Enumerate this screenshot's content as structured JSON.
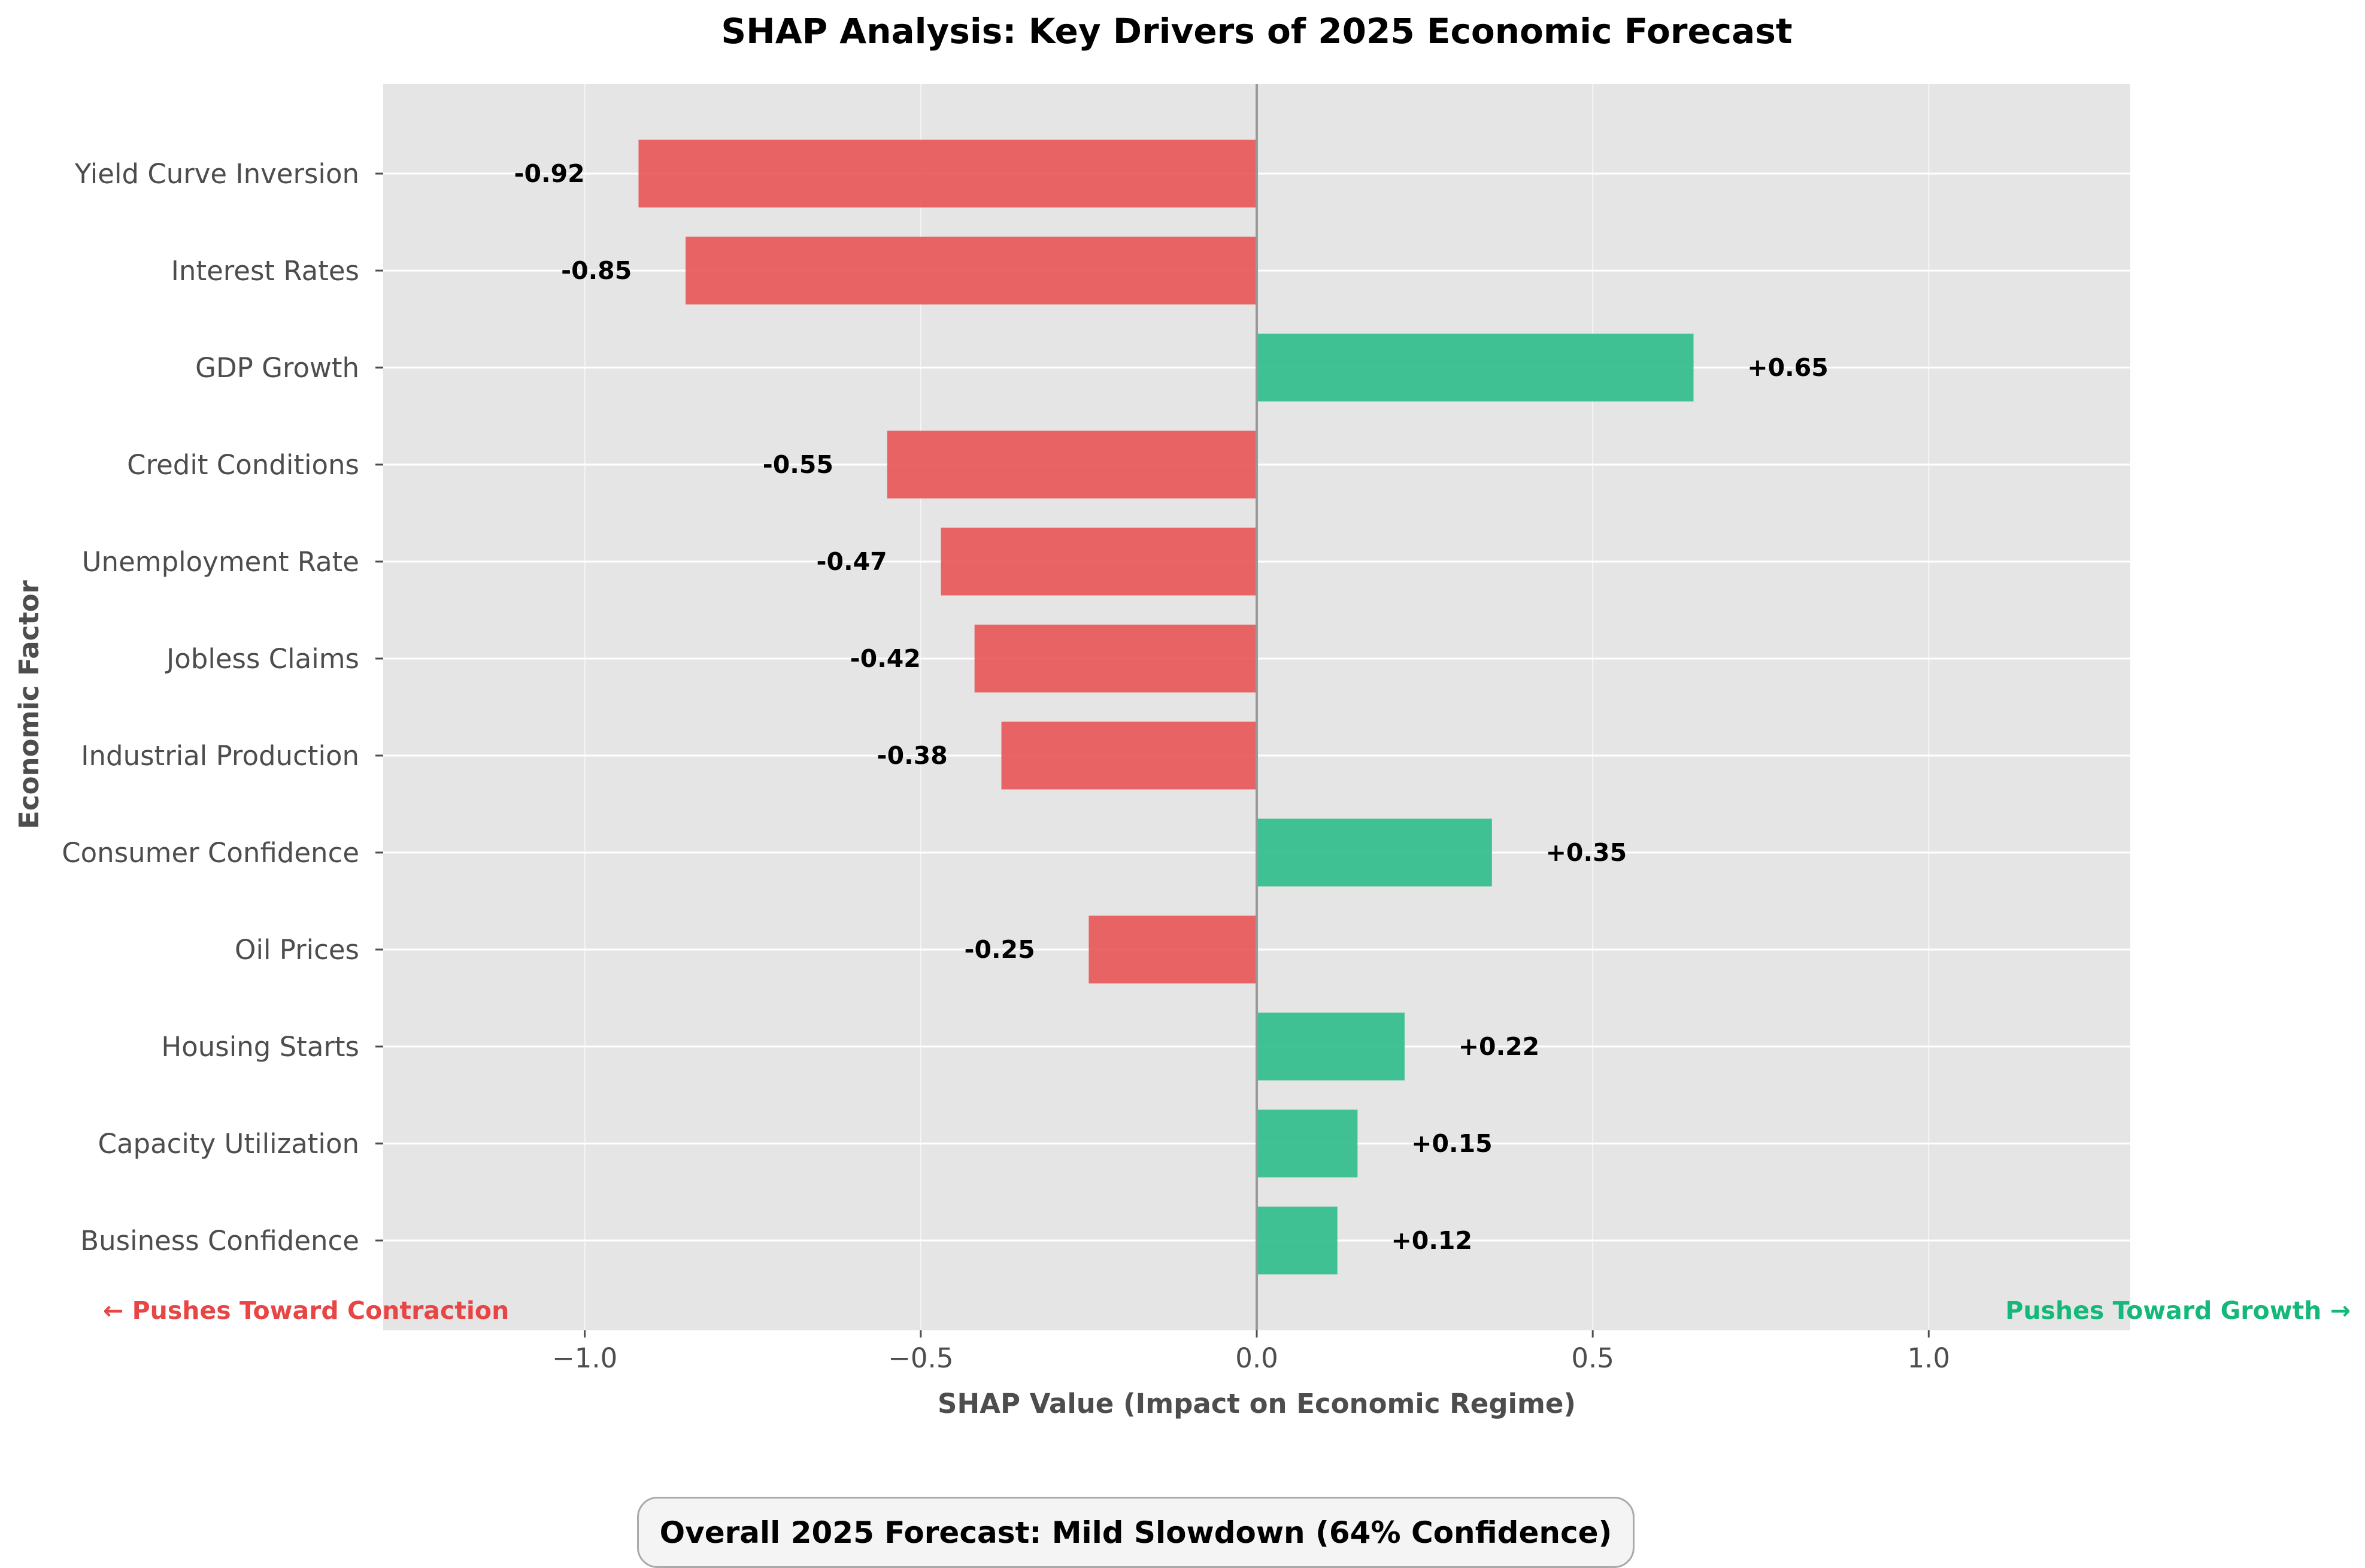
{
  "chart_data": {
    "type": "bar",
    "orientation": "horizontal",
    "title": "SHAP Analysis: Key Drivers of 2025 Economic Forecast",
    "xlabel": "SHAP Value (Impact on Economic Regime)",
    "ylabel": "Economic Factor",
    "xlim": [
      -1.3,
      1.3
    ],
    "xticks": [
      -1.0,
      -0.5,
      0.0,
      0.5,
      1.0
    ],
    "xtick_labels": [
      "−1.0",
      "−0.5",
      "0.0",
      "0.5",
      "1.0"
    ],
    "grid": true,
    "categories": [
      "Yield Curve Inversion",
      "Interest Rates",
      "GDP Growth",
      "Credit Conditions",
      "Unemployment Rate",
      "Jobless Claims",
      "Industrial Production",
      "Consumer Confidence",
      "Oil Prices",
      "Housing Starts",
      "Capacity Utilization",
      "Business Confidence"
    ],
    "values": [
      -0.92,
      -0.85,
      0.65,
      -0.55,
      -0.47,
      -0.42,
      -0.38,
      0.35,
      -0.25,
      0.22,
      0.15,
      0.12
    ],
    "value_labels": [
      "-0.92",
      "-0.85",
      "+0.65",
      "-0.55",
      "-0.47",
      "-0.42",
      "-0.38",
      "+0.35",
      "-0.25",
      "+0.22",
      "+0.15",
      "+0.12"
    ],
    "colors": {
      "negative": "#e85555",
      "positive": "#2ebd8a",
      "plot_background": "#e5e5e5",
      "grid": "#ffffff",
      "zero_line": "#999999"
    },
    "annotations": {
      "contraction": {
        "text": "← Pushes Toward Contraction",
        "color": "#e84545"
      },
      "growth": {
        "text": "Pushes Toward Growth →",
        "color": "#14b87a"
      }
    }
  },
  "summary": {
    "text": "Overall 2025 Forecast: Mild Slowdown (64% Confidence)"
  }
}
